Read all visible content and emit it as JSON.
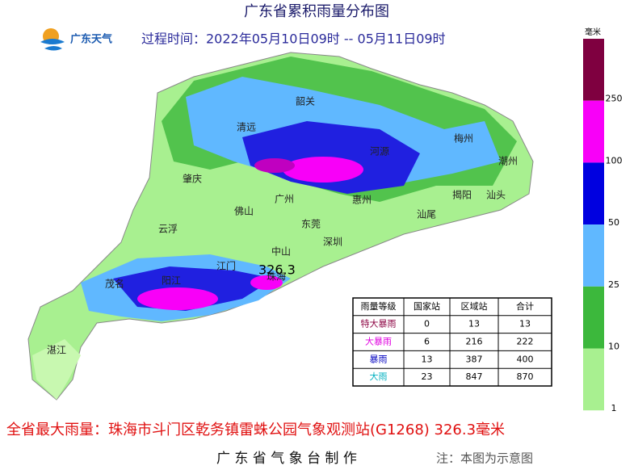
{
  "header": {
    "title": "广东省累积雨量分布图",
    "logo": "广东天气",
    "period": "过程时间：2022年05月10日09时 -- 05月11日09时"
  },
  "map": {
    "cities": [
      "韶关",
      "清远",
      "河源",
      "梅州",
      "潮州",
      "肇庆",
      "广州",
      "惠州",
      "揭阳",
      "汕头",
      "佛山",
      "东莞",
      "汕尾",
      "云浮",
      "深圳",
      "中山",
      "江门",
      "珠海",
      "茂名",
      "阳江",
      "湛江"
    ],
    "max_value_label": "326.3"
  },
  "legend": {
    "unit": "毫米",
    "labels": [
      "250",
      "100",
      "50",
      "25",
      "10",
      "1"
    ],
    "colors": [
      "#7f0040",
      "#f800f8",
      "#0000e0",
      "#60b8ff",
      "#3cb83c",
      "#a8f090"
    ]
  },
  "table": {
    "header": [
      "雨量等级",
      "国家站",
      "区域站",
      "合计"
    ],
    "rows": [
      [
        "特大暴雨",
        0,
        13,
        13
      ],
      [
        "大暴雨",
        6,
        216,
        222
      ],
      [
        "暴雨",
        13,
        387,
        400
      ],
      [
        "大雨",
        23,
        847,
        870
      ]
    ],
    "row_colors": [
      "#8b0040",
      "#e000e0",
      "#0000c0",
      "#00b0c0"
    ]
  },
  "footer": {
    "max_rain": "全省最大雨量：珠海市斗门区乾务镇雷蛛公园气象观测站(G1268) 326.3毫米",
    "producer": "广 东 省 气 象 台 制 作",
    "note": "注：本图为示意图"
  }
}
